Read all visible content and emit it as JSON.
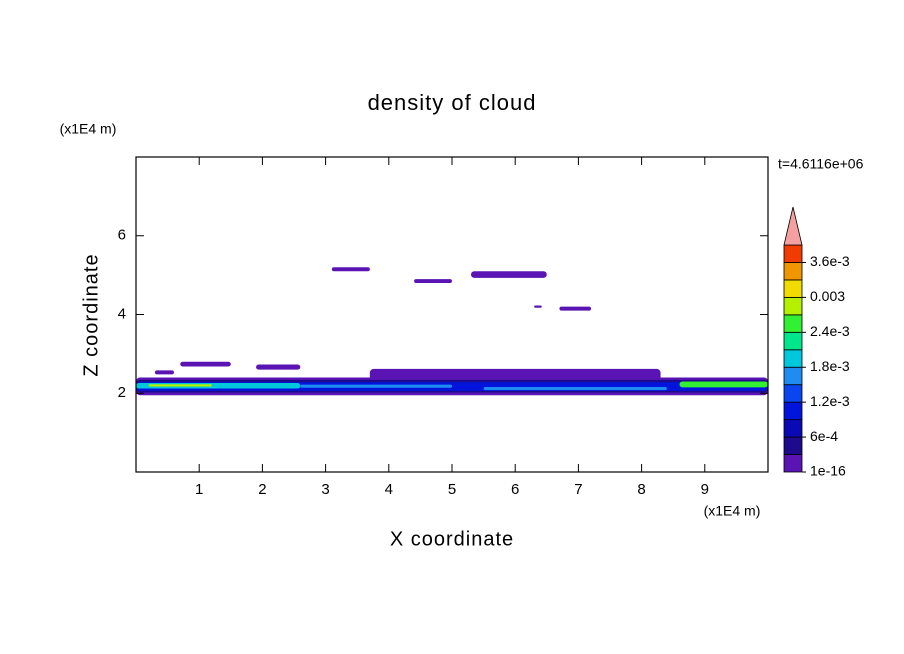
{
  "chart_data": {
    "type": "contour",
    "title": "density of cloud",
    "x_label": "X coordinate",
    "y_label": "Z coordinate",
    "x_unit": "(x1E4 m)",
    "y_unit": "(x1E4 m)",
    "time_label": "t=4.6116e+06",
    "xlim": [
      0,
      10
    ],
    "ylim": [
      0,
      8
    ],
    "xticks": [
      1,
      2,
      3,
      4,
      5,
      6,
      7,
      8,
      9
    ],
    "yticks": [
      2,
      4,
      6
    ],
    "levels": [
      1e-16,
      0.0003,
      0.0006,
      0.0009,
      0.0012,
      0.0015,
      0.0018,
      0.0021,
      0.0024,
      0.0027,
      0.003,
      0.0033,
      0.0036,
      0.0039
    ],
    "colors": [
      "#5a14b4",
      "#1e0a8c",
      "#0a0ab4",
      "#0014dc",
      "#0a46f0",
      "#1e8cf0",
      "#00c8dc",
      "#00e68c",
      "#32f032",
      "#b4f000",
      "#f0dc00",
      "#f09600",
      "#f03c00"
    ],
    "extend_color": "#f4a0a0",
    "colorbar_ticks": [
      {
        "value": 1e-16,
        "label": "1e-16"
      },
      {
        "value": 0.0006,
        "label": "6e-4"
      },
      {
        "value": 0.0012,
        "label": "1.2e-3"
      },
      {
        "value": 0.0018,
        "label": "1.8e-3"
      },
      {
        "value": 0.0024,
        "label": "2.4e-3"
      },
      0.003,
      {
        "value": 0.0036,
        "label": "3.6e-3"
      }
    ],
    "regions": [
      {
        "x": [
          0,
          10
        ],
        "z": [
          1.95,
          2.4
        ],
        "value": 0.0001
      },
      {
        "x": [
          3.7,
          8.3
        ],
        "z": [
          2.3,
          2.62
        ],
        "value": 0.0001
      },
      {
        "x": [
          0,
          10
        ],
        "z": [
          2.02,
          2.34
        ],
        "value": 0.0004
      },
      {
        "x": [
          0,
          10
        ],
        "z": [
          2.06,
          2.28
        ],
        "value": 0.001
      },
      {
        "x": [
          0,
          2.6
        ],
        "z": [
          2.12,
          2.26
        ],
        "value": 0.002
      },
      {
        "x": [
          2.6,
          5.0
        ],
        "z": [
          2.14,
          2.22
        ],
        "value": 0.0016
      },
      {
        "x": [
          5.5,
          8.4
        ],
        "z": [
          2.08,
          2.16
        ],
        "value": 0.0016
      },
      {
        "x": [
          8.6,
          10
        ],
        "z": [
          2.15,
          2.3
        ],
        "value": 0.0025
      },
      {
        "x": [
          0.2,
          1.2
        ],
        "z": [
          2.17,
          2.23
        ],
        "value": 0.0028
      },
      {
        "x": [
          0.3,
          0.6
        ],
        "z": [
          2.48,
          2.58
        ],
        "value": 0.0001
      },
      {
        "x": [
          0.7,
          1.5
        ],
        "z": [
          2.68,
          2.8
        ],
        "value": 0.0001
      },
      {
        "x": [
          1.9,
          2.6
        ],
        "z": [
          2.6,
          2.73
        ],
        "value": 0.0001
      },
      {
        "x": [
          3.1,
          3.7
        ],
        "z": [
          5.1,
          5.2
        ],
        "value": 0.0001
      },
      {
        "x": [
          4.4,
          5.0
        ],
        "z": [
          4.8,
          4.9
        ],
        "value": 0.0001
      },
      {
        "x": [
          5.3,
          6.5
        ],
        "z": [
          4.93,
          5.1
        ],
        "value": 0.0001
      },
      {
        "x": [
          6.3,
          6.42
        ],
        "z": [
          4.17,
          4.23
        ],
        "value": 0.0001
      },
      {
        "x": [
          6.7,
          7.2
        ],
        "z": [
          4.1,
          4.2
        ],
        "value": 0.0001
      }
    ]
  }
}
